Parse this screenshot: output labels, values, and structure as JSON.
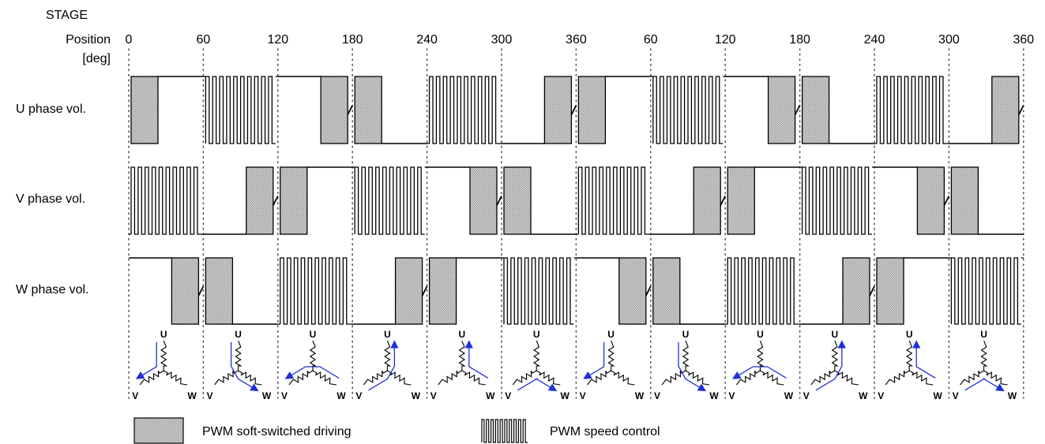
{
  "header": {
    "stage_label": "STAGE",
    "position_label_line1": "Position",
    "position_label_line2": "[deg]"
  },
  "position_ticks": [
    "0",
    "60",
    "120",
    "180",
    "240",
    "300",
    "360",
    "60",
    "120",
    "180",
    "240",
    "300",
    "360"
  ],
  "phases": [
    {
      "label": "U phase vol.",
      "sequence": [
        "soft-low",
        "pwm-high",
        "soft-fall",
        "soft-high",
        "pwm-low",
        "soft-rise",
        "soft-low",
        "pwm-high",
        "soft-fall",
        "soft-high",
        "pwm-low",
        "soft-rise"
      ]
    },
    {
      "label": "V phase vol.",
      "sequence": [
        "pwm-low",
        "soft-rise",
        "soft-low",
        "pwm-high",
        "soft-fall",
        "soft-high",
        "pwm-low",
        "soft-rise",
        "soft-low",
        "pwm-high",
        "soft-fall",
        "soft-high"
      ]
    },
    {
      "label": "W phase vol.",
      "sequence": [
        "soft-fall",
        "soft-high",
        "pwm-low",
        "soft-rise",
        "soft-low",
        "pwm-high",
        "soft-fall",
        "soft-high",
        "pwm-low",
        "soft-rise",
        "soft-low",
        "pwm-high"
      ]
    }
  ],
  "coil_labels": {
    "u": "U",
    "v": "V",
    "w": "W"
  },
  "coil_arrows": [
    {
      "in": "u",
      "out": "v"
    },
    {
      "in": "u",
      "out": "w"
    },
    {
      "in": "w",
      "out": "v"
    },
    {
      "in": "v",
      "out": "u"
    },
    {
      "in": "w",
      "out": "u"
    },
    {
      "in": "v",
      "out": "w"
    },
    {
      "in": "u",
      "out": "v"
    },
    {
      "in": "u",
      "out": "w"
    },
    {
      "in": "w",
      "out": "v"
    },
    {
      "in": "v",
      "out": "u"
    },
    {
      "in": "w",
      "out": "u"
    },
    {
      "in": "v",
      "out": "w"
    }
  ],
  "legend": {
    "soft_label": "PWM soft-switched driving",
    "pwm_label": "PWM speed control"
  },
  "colors": {
    "ink": "#000000",
    "hatch_fill": "#c8c8c8",
    "arrow": "#1f2fd6",
    "grid": "#555555"
  }
}
